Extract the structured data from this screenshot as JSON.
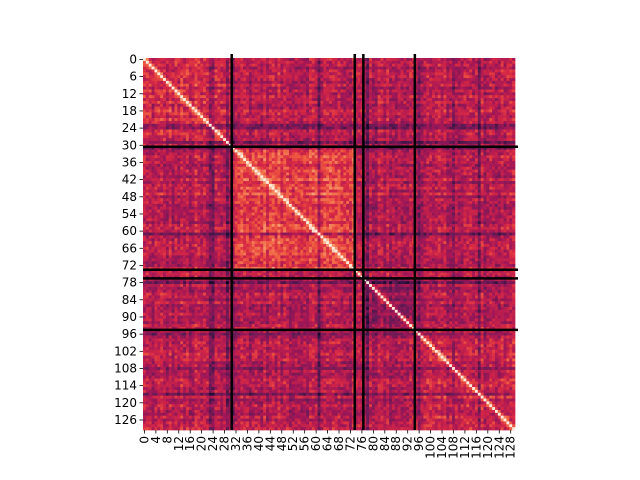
{
  "chart_data": {
    "type": "heatmap",
    "title": "",
    "xlabel": "",
    "ylabel": "",
    "n": 130,
    "colormap": "rocket",
    "value_range": [
      0,
      1
    ],
    "diagonal_value": 1.0,
    "cluster_boundaries": [
      31,
      74,
      77,
      95
    ],
    "boundary_color": "#000000",
    "x_ticks": [
      "0",
      "4",
      "8",
      "12",
      "16",
      "20",
      "24",
      "28",
      "32",
      "36",
      "40",
      "44",
      "48",
      "52",
      "56",
      "60",
      "64",
      "68",
      "72",
      "76",
      "80",
      "84",
      "88",
      "92",
      "96",
      "100",
      "104",
      "108",
      "112",
      "116",
      "120",
      "124",
      "128"
    ],
    "y_ticks": [
      "0",
      "6",
      "12",
      "18",
      "24",
      "30",
      "36",
      "42",
      "48",
      "54",
      "60",
      "66",
      "72",
      "78",
      "84",
      "90",
      "96",
      "102",
      "108",
      "114",
      "120",
      "126"
    ],
    "colorbar": false,
    "grid": false
  }
}
